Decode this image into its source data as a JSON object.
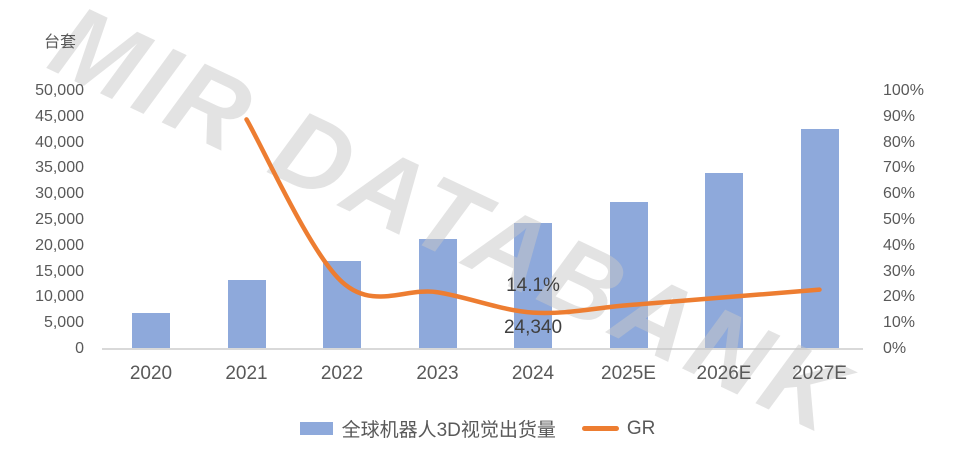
{
  "watermark_text": "MIR DATABANK",
  "chart_data": {
    "type": "bar",
    "subtype": "bar-line-combo",
    "title": "",
    "unit_label": "台套",
    "categories": [
      "2020",
      "2021",
      "2022",
      "2023",
      "2024",
      "2025E",
      "2026E",
      "2027E"
    ],
    "series": [
      {
        "name": "全球机器人3D视觉出货量",
        "type": "bar",
        "axis": "left",
        "color": "#8EA9DB",
        "values": [
          7000,
          13400,
          17000,
          21300,
          24340,
          28500,
          34200,
          42600
        ]
      },
      {
        "name": "GR",
        "type": "line",
        "axis": "right",
        "color": "#ED7D31",
        "values": [
          null,
          89,
          26,
          22,
          14.1,
          17,
          20,
          23
        ]
      }
    ],
    "left_axis": {
      "title": "台套",
      "min": 0,
      "max": 50000,
      "tick_step": 5000,
      "ticks_top_to_bottom": [
        "50,000",
        "45,000",
        "40,000",
        "35,000",
        "30,000",
        "25,000",
        "20,000",
        "15,000",
        "10,000",
        "5,000",
        "0"
      ]
    },
    "right_axis": {
      "min": 0,
      "max": 100,
      "tick_step": 10,
      "ticks_top_to_bottom": [
        "100%",
        "90%",
        "80%",
        "70%",
        "60%",
        "50%",
        "40%",
        "30%",
        "20%",
        "10%",
        "0%"
      ]
    },
    "data_labels": [
      {
        "series": "GR",
        "category": "2024",
        "text": "14.1%"
      },
      {
        "series": "全球机器人3D视觉出货量",
        "category": "2024",
        "text": "24,340"
      }
    ],
    "legend": {
      "position": "bottom",
      "entries": [
        "全球机器人3D视觉出货量",
        "GR"
      ]
    },
    "grid": "off",
    "colors": {
      "bar": "#8EA9DB",
      "line": "#ED7D31",
      "axis_text": "#595959",
      "data_label_text": "#404040",
      "axis_line": "#D9D9D9"
    }
  }
}
